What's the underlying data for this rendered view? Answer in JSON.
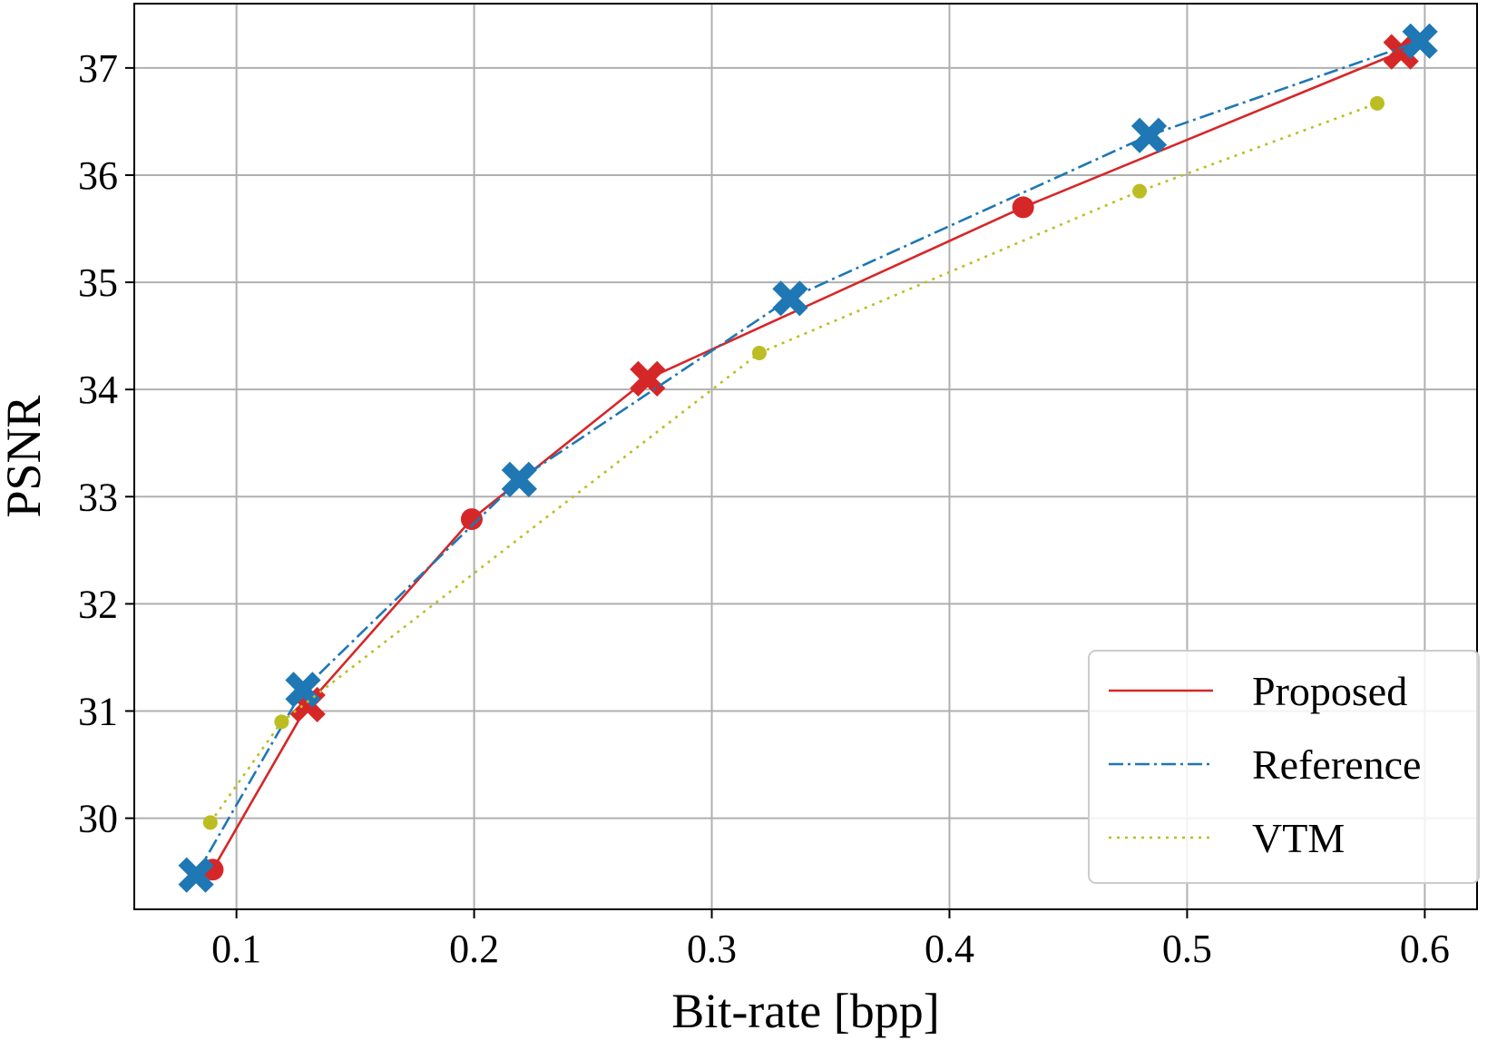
{
  "chart_data": {
    "type": "line",
    "title": "",
    "xlabel": "Bit-rate [bpp]",
    "ylabel": "PSNR",
    "xlim": [
      0.057,
      0.622
    ],
    "ylim": [
      29.15,
      37.6
    ],
    "xticks": [
      0.1,
      0.2,
      0.3,
      0.4,
      0.5,
      0.6
    ],
    "xtick_labels": [
      "0.1",
      "0.2",
      "0.3",
      "0.4",
      "0.5",
      "0.6"
    ],
    "yticks": [
      30,
      31,
      32,
      33,
      34,
      35,
      36,
      37
    ],
    "ytick_labels": [
      "30",
      "31",
      "32",
      "33",
      "34",
      "35",
      "36",
      "37"
    ],
    "grid": true,
    "legend_position": "lower-right",
    "series": [
      {
        "name": "Proposed",
        "color": "#d62728",
        "line_style": "solid",
        "points": [
          {
            "x": 0.09,
            "y": 29.52,
            "marker": "circle"
          },
          {
            "x": 0.13,
            "y": 31.06,
            "marker": "x"
          },
          {
            "x": 0.199,
            "y": 32.79,
            "marker": "circle"
          },
          {
            "x": 0.273,
            "y": 34.1,
            "marker": "x"
          },
          {
            "x": 0.431,
            "y": 35.7,
            "marker": "circle"
          },
          {
            "x": 0.59,
            "y": 37.15,
            "marker": "x"
          }
        ]
      },
      {
        "name": "Reference",
        "color": "#1f77b4",
        "line_style": "dashdot",
        "points": [
          {
            "x": 0.083,
            "y": 29.47,
            "marker": "x"
          },
          {
            "x": 0.128,
            "y": 31.2,
            "marker": "x"
          },
          {
            "x": 0.219,
            "y": 33.16,
            "marker": "x"
          },
          {
            "x": 0.333,
            "y": 34.85,
            "marker": "x"
          },
          {
            "x": 0.484,
            "y": 36.37,
            "marker": "x"
          },
          {
            "x": 0.598,
            "y": 37.25,
            "marker": "x"
          }
        ]
      },
      {
        "name": "VTM",
        "color": "#bcbd22",
        "line_style": "dotted",
        "points": [
          {
            "x": 0.089,
            "y": 29.96,
            "marker": "circle"
          },
          {
            "x": 0.119,
            "y": 30.9,
            "marker": "circle"
          },
          {
            "x": 0.32,
            "y": 34.34,
            "marker": "circle"
          },
          {
            "x": 0.48,
            "y": 35.85,
            "marker": "circle"
          },
          {
            "x": 0.58,
            "y": 36.67,
            "marker": "circle"
          }
        ]
      }
    ]
  }
}
